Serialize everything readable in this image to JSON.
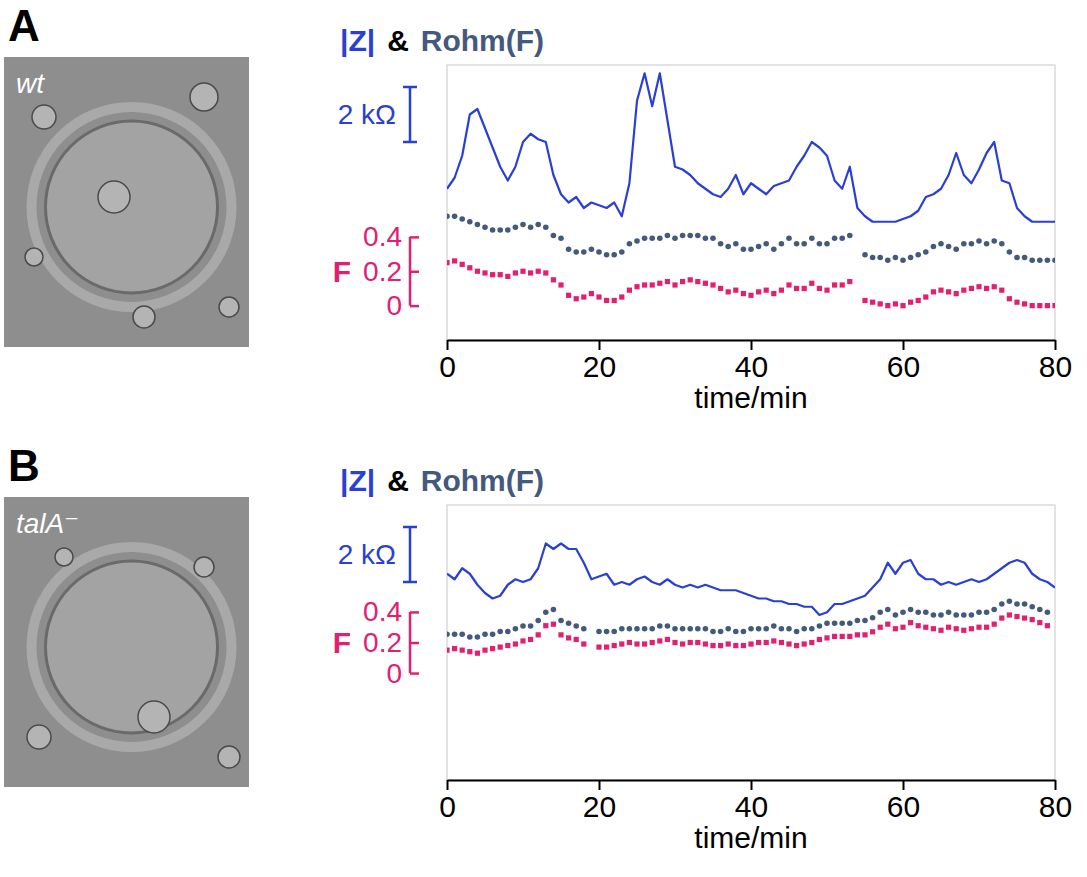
{
  "chart_data": [
    {
      "type": "line",
      "panel": "A",
      "image_label": "wt",
      "legend": "top-left",
      "annotations": [
        "&"
      ],
      "xlabel": "time/min",
      "ylabel": "F",
      "xlim": [
        0,
        80
      ],
      "xticks": [
        0,
        20,
        40,
        60,
        80
      ],
      "ylim": [
        -0.2,
        1.4
      ],
      "yticks": [
        0,
        0.2,
        0.4
      ],
      "y2lim": [
        0,
        10
      ],
      "scale_bar": {
        "value": 2,
        "label": "2 kΩ"
      },
      "x": [
        0,
        1,
        2,
        3,
        4,
        5,
        6,
        7,
        8,
        9,
        10,
        11,
        12,
        13,
        14,
        15,
        16,
        17,
        18,
        19,
        20,
        21,
        22,
        23,
        24,
        25,
        26,
        27,
        28,
        29,
        30,
        31,
        32,
        33,
        34,
        35,
        36,
        37,
        38,
        39,
        40,
        41,
        42,
        43,
        44,
        45,
        46,
        47,
        48,
        49,
        50,
        51,
        52,
        53,
        54,
        55,
        56,
        57,
        58,
        59,
        60,
        61,
        62,
        63,
        64,
        65,
        66,
        67,
        68,
        69,
        70,
        71,
        72,
        73,
        74,
        75,
        76,
        77,
        78,
        79,
        80
      ],
      "series": [
        {
          "name": "|Z|",
          "type": "line",
          "axis": "y2",
          "color": "#2a3fd4",
          "line_style": "solid",
          "values": [
            5.5,
            5.9,
            6.7,
            8.2,
            8.4,
            7.7,
            7.0,
            6.3,
            5.8,
            6.3,
            7.2,
            7.5,
            7.3,
            7.2,
            6.0,
            5.3,
            5.0,
            5.2,
            4.8,
            5.0,
            4.9,
            4.8,
            5.0,
            4.5,
            5.7,
            8.7,
            9.7,
            8.5,
            9.7,
            8.0,
            6.3,
            6.2,
            6.0,
            5.7,
            5.5,
            5.3,
            5.2,
            5.5,
            6.0,
            5.3,
            5.7,
            5.5,
            5.3,
            5.6,
            5.7,
            5.8,
            6.3,
            6.7,
            7.2,
            7.0,
            6.7,
            5.8,
            5.5,
            6.3,
            4.8,
            4.5,
            4.3,
            4.3,
            4.3,
            4.3,
            4.4,
            4.5,
            4.7,
            5.2,
            5.3,
            5.5,
            6.0,
            6.8,
            6.0,
            5.7,
            6.2,
            6.8,
            7.2,
            5.8,
            5.7,
            4.8,
            4.5,
            4.3,
            4.3,
            4.3,
            4.3
          ]
        },
        {
          "name": "Rohm(F)",
          "type": "scatter",
          "axis": "y2",
          "color": "#44597d",
          "marker": "circle",
          "values": [
            4.5,
            4.5,
            4.4,
            4.3,
            4.2,
            4.1,
            4,
            4,
            4,
            4.1,
            4.2,
            4.1,
            4.2,
            4.1,
            3.8,
            3.7,
            3.3,
            3.2,
            3.2,
            3.3,
            3.2,
            3.1,
            3.1,
            3.2,
            3.5,
            3.6,
            3.7,
            3.7,
            3.7,
            3.8,
            3.7,
            3.8,
            3.8,
            3.8,
            3.7,
            3.7,
            3.5,
            3.4,
            3.5,
            3.3,
            3.3,
            3.4,
            3.5,
            3.3,
            3.5,
            3.7,
            3.5,
            3.5,
            3.7,
            3.5,
            3.5,
            3.7,
            3.7,
            3.8,
            null,
            3.1,
            3,
            3,
            2.9,
            3,
            2.9,
            3,
            3.1,
            3.2,
            3.4,
            3.5,
            3.4,
            3.3,
            3.5,
            3.5,
            3.6,
            3.5,
            3.6,
            3.5,
            3.2,
            3,
            3,
            2.9,
            2.9,
            2.9,
            2.9
          ]
        },
        {
          "type": "scatter",
          "color": "#e3206f",
          "marker": "square",
          "values": [
            0.25,
            0.26,
            0.24,
            0.22,
            0.2,
            0.19,
            0.18,
            0.18,
            0.17,
            0.19,
            0.2,
            0.19,
            0.2,
            0.19,
            0.15,
            0.12,
            0.06,
            0.04,
            0.05,
            0.07,
            0.05,
            0.03,
            0.03,
            0.05,
            0.09,
            0.11,
            0.12,
            0.12,
            0.13,
            0.14,
            0.12,
            0.14,
            0.15,
            0.14,
            0.13,
            0.12,
            0.1,
            0.08,
            0.09,
            0.07,
            0.06,
            0.08,
            0.09,
            0.07,
            0.09,
            0.12,
            0.1,
            0.1,
            0.13,
            0.1,
            0.09,
            0.12,
            0.12,
            0.14,
            null,
            0.03,
            0.02,
            0.01,
            0,
            0.01,
            0,
            0.02,
            0.03,
            0.05,
            0.08,
            0.09,
            0.08,
            0.07,
            0.09,
            0.1,
            0.11,
            0.1,
            0.11,
            0.09,
            0.04,
            0.02,
            0.01,
            0,
            0,
            0,
            0
          ]
        }
      ]
    },
    {
      "type": "line",
      "panel": "B",
      "image_label": "talA⁻",
      "legend": "top-left",
      "annotations": [
        "&"
      ],
      "xlabel": "time/min",
      "ylabel": "F",
      "xlim": [
        0,
        80
      ],
      "xticks": [
        0,
        20,
        40,
        60,
        80
      ],
      "ylim": [
        -0.7,
        1.1
      ],
      "yticks": [
        0,
        0.2,
        0.4
      ],
      "y2lim": [
        0,
        10
      ],
      "scale_bar": {
        "value": 2,
        "label": "2 kΩ"
      },
      "x": [
        0,
        1,
        2,
        3,
        4,
        5,
        6,
        7,
        8,
        9,
        10,
        11,
        12,
        13,
        14,
        15,
        16,
        17,
        18,
        19,
        20,
        21,
        22,
        23,
        24,
        25,
        26,
        27,
        28,
        29,
        30,
        31,
        32,
        33,
        34,
        35,
        36,
        37,
        38,
        39,
        40,
        41,
        42,
        43,
        44,
        45,
        46,
        47,
        48,
        49,
        50,
        51,
        52,
        53,
        54,
        55,
        56,
        57,
        58,
        59,
        60,
        61,
        62,
        63,
        64,
        65,
        66,
        67,
        68,
        69,
        70,
        71,
        72,
        73,
        74,
        75,
        76,
        77,
        78,
        79,
        80
      ],
      "series": [
        {
          "name": "|Z|",
          "type": "line",
          "axis": "y2",
          "color": "#2a3fd4",
          "line_style": "solid",
          "values": [
            7.5,
            7.3,
            7.7,
            7.5,
            7.1,
            6.8,
            6.6,
            6.7,
            7.1,
            7.3,
            7.2,
            7.3,
            7.7,
            8.6,
            8.4,
            8.6,
            8.4,
            8.4,
            7.9,
            7.3,
            7.4,
            7.5,
            7.1,
            7.2,
            7.1,
            7.3,
            7.4,
            7.2,
            7.1,
            7.3,
            7.1,
            7.0,
            7.1,
            7.0,
            7.1,
            7.0,
            6.9,
            6.9,
            6.9,
            6.8,
            6.7,
            6.6,
            6.6,
            6.5,
            6.5,
            6.4,
            6.4,
            6.3,
            6.3,
            6.0,
            6.1,
            6.4,
            6.4,
            6.5,
            6.6,
            6.7,
            7.0,
            7.3,
            7.9,
            7.5,
            7.9,
            8.0,
            7.5,
            7.3,
            7.3,
            7.1,
            7.2,
            7.1,
            7.2,
            7.3,
            7.2,
            7.3,
            7.5,
            7.7,
            7.9,
            8.0,
            7.9,
            7.5,
            7.3,
            7.2,
            7.0
          ]
        },
        {
          "name": "Rohm(F)",
          "type": "scatter",
          "axis": "y2",
          "color": "#44597d",
          "marker": "circle",
          "values": [
            5.3,
            5.3,
            5.3,
            5.2,
            5.2,
            5.3,
            5.3,
            5.4,
            5.4,
            5.5,
            5.6,
            5.6,
            5.8,
            6.1,
            6.2,
            5.8,
            5.7,
            5.6,
            5.5,
            null,
            5.4,
            5.4,
            5.4,
            5.5,
            5.5,
            5.5,
            5.5,
            5.5,
            5.6,
            5.6,
            5.5,
            5.5,
            5.5,
            5.5,
            5.5,
            5.4,
            5.4,
            5.5,
            5.4,
            5.4,
            5.5,
            5.5,
            5.5,
            5.6,
            5.5,
            5.5,
            5.4,
            5.5,
            5.5,
            5.6,
            5.7,
            5.7,
            5.7,
            5.7,
            5.8,
            5.8,
            5.9,
            6.1,
            6.2,
            6,
            6.1,
            6.2,
            6.1,
            6.1,
            6,
            6,
            6.1,
            6,
            6,
            6,
            6.1,
            6.1,
            6.2,
            6.4,
            6.5,
            6.4,
            6.4,
            6.3,
            6.2,
            6.1,
            null
          ]
        },
        {
          "type": "scatter",
          "color": "#e3206f",
          "marker": "square",
          "values": [
            0.15,
            0.16,
            0.15,
            0.14,
            0.13,
            0.15,
            0.16,
            0.17,
            0.18,
            0.19,
            0.21,
            0.22,
            0.25,
            0.31,
            0.32,
            0.25,
            0.23,
            0.22,
            0.19,
            null,
            0.17,
            0.17,
            0.18,
            0.19,
            0.2,
            0.19,
            0.19,
            0.2,
            0.21,
            0.22,
            0.2,
            0.19,
            0.2,
            0.2,
            0.19,
            0.18,
            0.18,
            0.19,
            0.18,
            0.18,
            0.19,
            0.2,
            0.2,
            0.21,
            0.2,
            0.19,
            0.18,
            0.19,
            0.2,
            0.22,
            0.23,
            0.24,
            0.24,
            0.24,
            0.25,
            0.25,
            0.27,
            0.3,
            0.32,
            0.29,
            0.3,
            0.33,
            0.31,
            0.3,
            0.29,
            0.28,
            0.3,
            0.29,
            0.28,
            0.29,
            0.3,
            0.3,
            0.32,
            0.36,
            0.38,
            0.37,
            0.36,
            0.35,
            0.33,
            0.31,
            null
          ]
        }
      ]
    }
  ]
}
